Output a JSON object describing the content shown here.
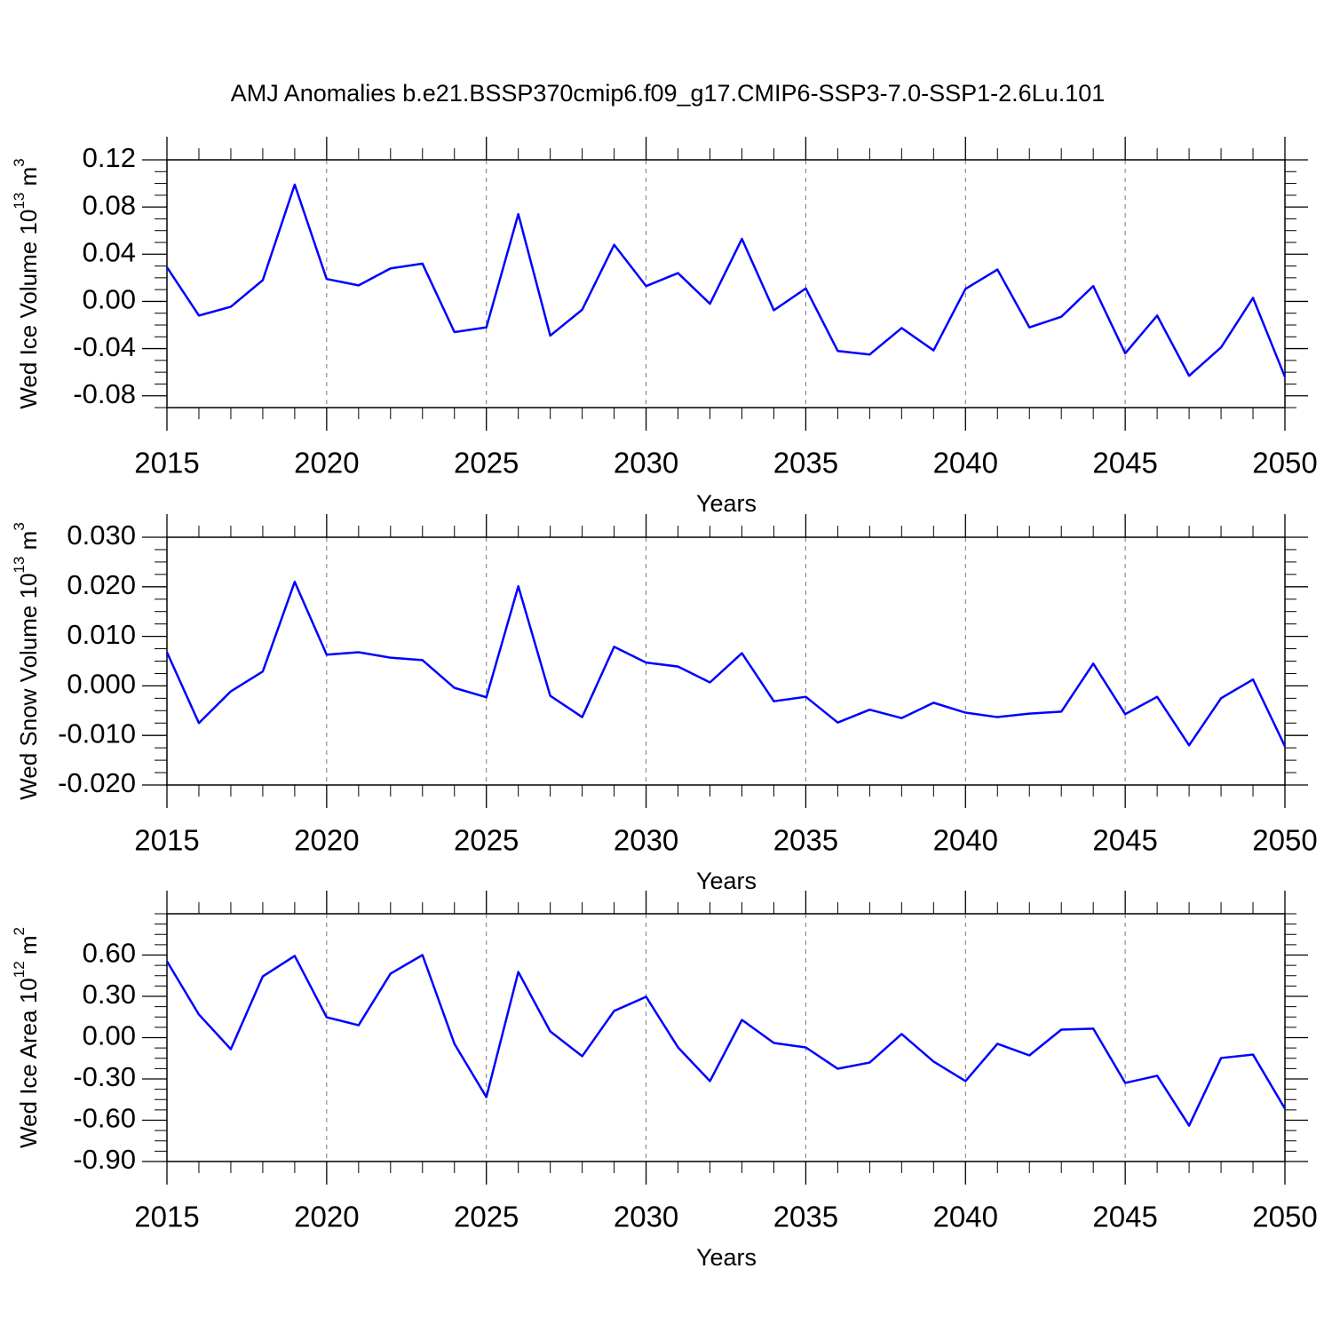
{
  "chart_data": [
    {
      "type": "line",
      "title": "AMJ Anomalies b.e21.BSSP370cmip6.f09_g17.CMIP6-SSP3-7.0-SSP1-2.6Lu.101",
      "xlabel": "Years",
      "ylabel": [
        "Wed Ice Volume 10",
        "13",
        " m",
        "3"
      ],
      "x": [
        2015,
        2016,
        2017,
        2018,
        2019,
        2020,
        2021,
        2022,
        2023,
        2024,
        2025,
        2026,
        2027,
        2028,
        2029,
        2030,
        2031,
        2032,
        2033,
        2034,
        2035,
        2036,
        2037,
        2038,
        2039,
        2040,
        2041,
        2042,
        2043,
        2044,
        2045,
        2046,
        2047,
        2048,
        2049,
        2050
      ],
      "series": [
        {
          "color": "#0000ff",
          "values": [
            0.029,
            -0.012,
            -0.0045,
            0.018,
            0.099,
            0.019,
            0.0136,
            0.028,
            0.032,
            -0.026,
            -0.022,
            0.074,
            -0.029,
            -0.007,
            0.048,
            0.013,
            0.024,
            -0.002,
            0.053,
            -0.0075,
            0.011,
            -0.042,
            -0.045,
            -0.0226,
            -0.0415,
            0.0106,
            0.027,
            -0.022,
            -0.013,
            0.013,
            -0.044,
            -0.012,
            -0.063,
            -0.039,
            0.003,
            -0.064
          ]
        }
      ],
      "xlim": [
        2015,
        2050
      ],
      "xticks": [
        2015,
        2020,
        2025,
        2030,
        2035,
        2040,
        2045,
        2050
      ],
      "ylim": [
        -0.09,
        0.12
      ],
      "yticks": [
        -0.08,
        -0.04,
        {
          "value": 0,
          "label": "0.00"
        },
        0.04,
        0.08,
        0.12
      ],
      "grid": "x"
    },
    {
      "type": "line",
      "xlabel": "Years",
      "ylabel": [
        "Wed Snow Volume 10",
        "13",
        " m",
        "3"
      ],
      "x": [
        2015,
        2016,
        2017,
        2018,
        2019,
        2020,
        2021,
        2022,
        2023,
        2024,
        2025,
        2026,
        2027,
        2028,
        2029,
        2030,
        2031,
        2032,
        2033,
        2034,
        2035,
        2036,
        2037,
        2038,
        2039,
        2040,
        2041,
        2042,
        2043,
        2044,
        2045,
        2046,
        2047,
        2048,
        2049,
        2050
      ],
      "series": [
        {
          "color": "#0000ff",
          "values": [
            0.0068,
            -0.0075,
            -0.0011,
            0.0029,
            0.021,
            0.0063,
            0.0068,
            0.0057,
            0.0052,
            -0.0004,
            -0.0023,
            0.0201,
            -0.002,
            -0.0063,
            0.0079,
            0.0047,
            0.0039,
            0.0007,
            0.0066,
            -0.0031,
            -0.0022,
            -0.0074,
            -0.0048,
            -0.0065,
            -0.0034,
            -0.0054,
            -0.0063,
            -0.0056,
            -0.0052,
            0.0045,
            -0.0057,
            -0.0022,
            -0.012,
            -0.0025,
            0.0013,
            -0.0122
          ]
        }
      ],
      "xlim": [
        2015,
        2050
      ],
      "xticks": [
        2015,
        2020,
        2025,
        2030,
        2035,
        2040,
        2045,
        2050
      ],
      "ylim": [
        -0.02,
        0.03
      ],
      "yticks": [
        {
          "value": -0.02,
          "label": "-0.020"
        },
        {
          "value": -0.01,
          "label": "-0.010"
        },
        {
          "value": 0,
          "label": "0.000"
        },
        {
          "value": 0.01,
          "label": "0.010"
        },
        {
          "value": 0.02,
          "label": "0.020"
        },
        {
          "value": 0.03,
          "label": "0.030"
        }
      ],
      "grid": "x"
    },
    {
      "type": "line",
      "xlabel": "Years",
      "ylabel": [
        "Wed Ice Area 10",
        "12",
        " m",
        "2"
      ],
      "x": [
        2015,
        2016,
        2017,
        2018,
        2019,
        2020,
        2021,
        2022,
        2023,
        2024,
        2025,
        2026,
        2027,
        2028,
        2029,
        2030,
        2031,
        2032,
        2033,
        2034,
        2035,
        2036,
        2037,
        2038,
        2039,
        2040,
        2041,
        2042,
        2043,
        2044,
        2045,
        2046,
        2047,
        2048,
        2049,
        2050
      ],
      "series": [
        {
          "color": "#0000ff",
          "values": [
            0.555,
            0.168,
            -0.084,
            0.445,
            0.594,
            0.148,
            0.09,
            0.465,
            0.6,
            -0.045,
            -0.432,
            0.477,
            0.045,
            -0.135,
            0.194,
            0.297,
            -0.071,
            -0.316,
            0.129,
            -0.039,
            -0.071,
            -0.226,
            -0.181,
            0.026,
            -0.174,
            -0.316,
            -0.045,
            -0.129,
            0.058,
            0.065,
            -0.329,
            -0.277,
            -0.639,
            -0.148,
            -0.123,
            -0.516
          ]
        }
      ],
      "xlim": [
        2015,
        2050
      ],
      "xticks": [
        2015,
        2020,
        2025,
        2030,
        2035,
        2040,
        2045,
        2050
      ],
      "ylim": [
        -0.9,
        0.9
      ],
      "yticks": [
        {
          "value": -0.9,
          "label": "-0.90"
        },
        {
          "value": -0.6,
          "label": "-0.60"
        },
        {
          "value": -0.3,
          "label": "-0.30"
        },
        {
          "value": 0,
          "label": "0.00"
        },
        {
          "value": 0.3,
          "label": "0.30"
        },
        {
          "value": 0.6,
          "label": "0.60"
        }
      ],
      "grid": "x"
    }
  ]
}
